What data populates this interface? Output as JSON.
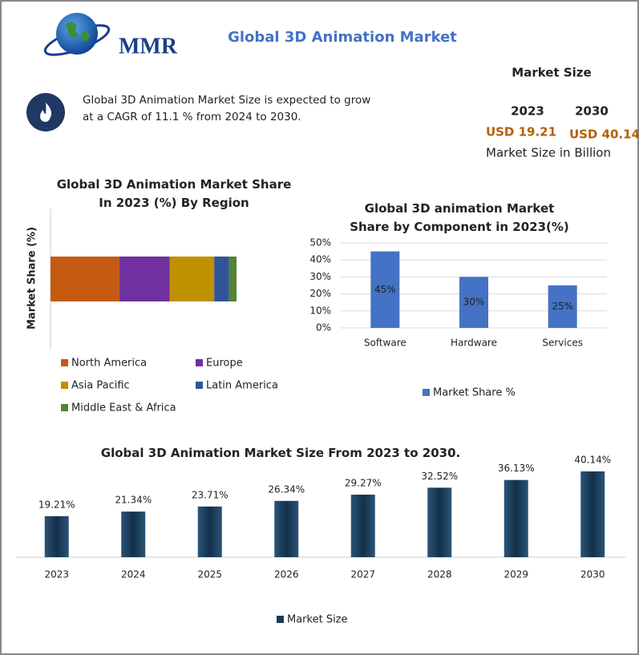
{
  "header": {
    "logo": "MMR",
    "title": "Global 3D Animation Market",
    "description": "Global 3D Animation Market Size is expected to grow at a CAGR of 11.1 % from 2024 to 2030.",
    "market_size": {
      "heading": "Market Size",
      "years": [
        "2023",
        "2030"
      ],
      "values": [
        "USD 19.21",
        "USD 40.14"
      ],
      "unit_note": "Market Size in Billion"
    }
  },
  "chart_data": [
    {
      "type": "bar",
      "orientation": "horizontal",
      "stacked": true,
      "title": "Global 3D Animation Market Share In 2023 (%) By Region",
      "y_label": "Market Share (%)",
      "categories": [
        null
      ],
      "series": [
        {
          "name": "North America",
          "color": "#c55a11",
          "values": [
            37
          ]
        },
        {
          "name": "Europe",
          "color": "#7030a0",
          "values": [
            27
          ]
        },
        {
          "name": "Asia Pacific",
          "color": "#bf9000",
          "values": [
            24
          ]
        },
        {
          "name": "Latin America",
          "color": "#2f5597",
          "values": [
            8
          ]
        },
        {
          "name": "Middle East & Africa",
          "color": "#548235",
          "values": [
            4
          ]
        }
      ]
    },
    {
      "type": "bar",
      "title": "Global 3D animation Market Share by Component in 2023(%)",
      "categories": [
        "Software",
        "Hardware",
        "Services"
      ],
      "series": [
        {
          "name": "Market Share %",
          "color": "#4472c4",
          "values": [
            45,
            30,
            25
          ],
          "value_labels": [
            "45%",
            "30%",
            "25%"
          ]
        }
      ],
      "ylim": [
        0,
        50
      ],
      "yticks": [
        {
          "value": 0,
          "label": "0%"
        },
        {
          "value": 10,
          "label": "10%"
        },
        {
          "value": 20,
          "label": "20%"
        },
        {
          "value": 30,
          "label": "30%"
        },
        {
          "value": 40,
          "label": "40%"
        },
        {
          "value": 50,
          "label": "50%"
        }
      ],
      "grid": true
    },
    {
      "type": "bar",
      "title": "Global 3D Animation Market Size From 2023 to 2030.",
      "categories": [
        "2023",
        "2024",
        "2025",
        "2026",
        "2027",
        "2028",
        "2029",
        "2030"
      ],
      "series": [
        {
          "name": "Market Size",
          "color": "#1b3a57",
          "values": [
            19.21,
            21.34,
            23.71,
            26.34,
            29.27,
            32.52,
            36.13,
            40.14
          ],
          "value_labels": [
            "19.21%",
            "21.34%",
            "23.71%",
            "26.34%",
            "29.27%",
            "32.52%",
            "36.13%",
            "40.14%"
          ]
        }
      ]
    }
  ]
}
